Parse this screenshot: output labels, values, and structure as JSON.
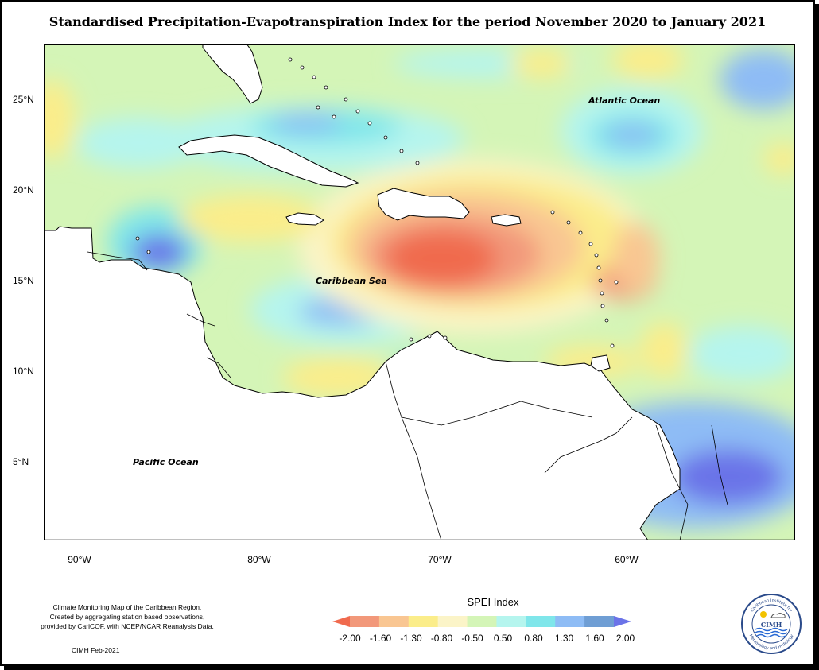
{
  "title": "Standardised Precipitation-Evapotranspiration Index for the period November 2020 to January 2021",
  "map": {
    "y_ticks": [
      "25°N",
      "20°N",
      "15°N",
      "10°N",
      "5°N"
    ],
    "x_ticks": [
      "90°W",
      "80°W",
      "70°W",
      "60°W"
    ],
    "labels": {
      "atlantic": "Atlantic Ocean",
      "caribbean": "Caribbean Sea",
      "pacific": "Pacific Ocean"
    },
    "colors": {
      "background": "#d4f5b7",
      "land": "#ffffff",
      "outline": "#000000"
    }
  },
  "legend": {
    "title": "SPEI Index",
    "labels": [
      "-2.00",
      "-1.60",
      "-1.30",
      "-0.80",
      "-0.50",
      "0.50",
      "0.80",
      "1.30",
      "1.60",
      "2.00"
    ],
    "colors": [
      "#f06a4e",
      "#f2987a",
      "#f9c692",
      "#fbed8a",
      "#fbf4c8",
      "#d4f5b7",
      "#b5f5ee",
      "#7fe6ea",
      "#8ebcf5",
      "#6f9ed4",
      "#6b73e8"
    ]
  },
  "footnote": {
    "line1": "Climate Monitoring Map of the Caribbean Region.",
    "line2": "Created by aggregating station based observations,",
    "line3": "provided by CariCOF, with NCEP/NCAR Reanalysis Data.",
    "credit": "CIMH Feb-2021"
  },
  "logo": {
    "text": "CIMH",
    "ring_top": "Caribbean Institute for",
    "ring_bottom": "Meteorology and Hydrology"
  }
}
